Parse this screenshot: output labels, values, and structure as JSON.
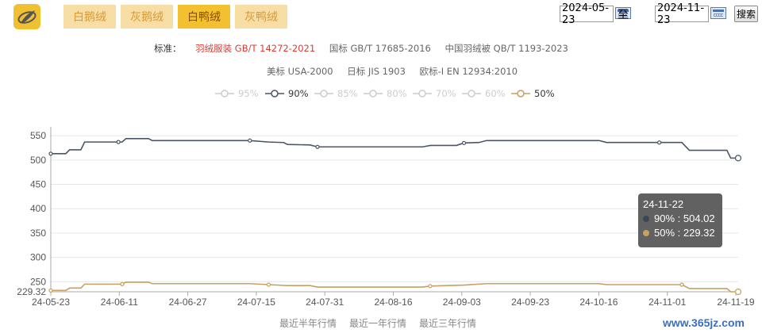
{
  "logo": {
    "icon": "feather-icon",
    "color": "#f0c030"
  },
  "tabs": [
    {
      "label": "白鹅绒",
      "active": false
    },
    {
      "label": "灰鹅绒",
      "active": false
    },
    {
      "label": "白鸭绒",
      "active": true
    },
    {
      "label": "灰鸭绒",
      "active": false
    }
  ],
  "date_range": {
    "start": "2024-05-23",
    "separator": "至",
    "end": "2024-11-23",
    "search_label": "搜索"
  },
  "standards": {
    "label": "标准：",
    "row1": [
      "羽绒服装 GB/T 14272-2021",
      "国标 GB/T 17685-2016",
      "中国羽绒被 QB/T 1193-2023"
    ],
    "row2": [
      "美标 USA-2000",
      "日标 JIS 1903",
      "欧标-I EN 12934:2010"
    ]
  },
  "chart_data": {
    "type": "line",
    "legend": [
      {
        "name": "95%",
        "active": false
      },
      {
        "name": "90%",
        "active": true,
        "color": "#4a5568"
      },
      {
        "name": "85%",
        "active": false
      },
      {
        "name": "80%",
        "active": false
      },
      {
        "name": "70%",
        "active": false
      },
      {
        "name": "60%",
        "active": false
      },
      {
        "name": "50%",
        "active": true,
        "color": "#c8a060"
      }
    ],
    "x_tick_labels": [
      "24-05-23",
      "24-06-11",
      "24-06-27",
      "24-07-15",
      "24-07-31",
      "24-08-16",
      "24-09-03",
      "24-09-23",
      "24-10-16",
      "24-11-01",
      "24-11-19"
    ],
    "y_ticks": [
      250,
      300,
      350,
      400,
      450,
      500,
      550
    ],
    "y_min_label": "229.32",
    "ylim": [
      229.32,
      560
    ],
    "grid": true,
    "series": [
      {
        "name": "90%",
        "color": "#4a5568",
        "points": [
          [
            "2024-05-23",
            513
          ],
          [
            "2024-05-27",
            513
          ],
          [
            "2024-05-28",
            521
          ],
          [
            "2024-05-31",
            521
          ],
          [
            "2024-06-01",
            537
          ],
          [
            "2024-06-10",
            537
          ],
          [
            "2024-06-11",
            537
          ],
          [
            "2024-06-12",
            544
          ],
          [
            "2024-06-18",
            544
          ],
          [
            "2024-06-19",
            540
          ],
          [
            "2024-07-15",
            540
          ],
          [
            "2024-07-20",
            537
          ],
          [
            "2024-07-24",
            536
          ],
          [
            "2024-07-25",
            532
          ],
          [
            "2024-07-31",
            531
          ],
          [
            "2024-08-02",
            527
          ],
          [
            "2024-08-16",
            527
          ],
          [
            "2024-08-30",
            527
          ],
          [
            "2024-09-01",
            530
          ],
          [
            "2024-09-08",
            530
          ],
          [
            "2024-09-10",
            535
          ],
          [
            "2024-09-14",
            536
          ],
          [
            "2024-09-16",
            540
          ],
          [
            "2024-10-16",
            540
          ],
          [
            "2024-10-18",
            536
          ],
          [
            "2024-11-01",
            536
          ],
          [
            "2024-11-07",
            536
          ],
          [
            "2024-11-09",
            520
          ],
          [
            "2024-11-19",
            520
          ],
          [
            "2024-11-20",
            504.02
          ],
          [
            "2024-11-22",
            504.02
          ]
        ]
      },
      {
        "name": "50%",
        "color": "#c8a060",
        "points": [
          [
            "2024-05-23",
            232
          ],
          [
            "2024-05-27",
            232
          ],
          [
            "2024-05-28",
            237
          ],
          [
            "2024-05-31",
            237
          ],
          [
            "2024-06-01",
            245
          ],
          [
            "2024-06-11",
            245
          ],
          [
            "2024-06-12",
            249
          ],
          [
            "2024-06-18",
            249
          ],
          [
            "2024-06-19",
            246
          ],
          [
            "2024-07-15",
            246
          ],
          [
            "2024-07-20",
            244
          ],
          [
            "2024-07-25",
            242
          ],
          [
            "2024-07-31",
            242
          ],
          [
            "2024-08-02",
            239
          ],
          [
            "2024-08-30",
            239
          ],
          [
            "2024-09-01",
            241
          ],
          [
            "2024-09-10",
            243
          ],
          [
            "2024-09-16",
            246
          ],
          [
            "2024-10-16",
            246
          ],
          [
            "2024-10-18",
            244
          ],
          [
            "2024-11-07",
            244
          ],
          [
            "2024-11-09",
            236
          ],
          [
            "2024-11-19",
            236
          ],
          [
            "2024-11-20",
            229.32
          ],
          [
            "2024-11-22",
            229.32
          ]
        ]
      }
    ],
    "tooltip": {
      "date": "24-11-22",
      "rows": [
        {
          "name": "90%",
          "value": "504.02",
          "color": "#3d4557"
        },
        {
          "name": "50%",
          "value": "229.32",
          "color": "#c8a060"
        }
      ]
    }
  },
  "bottom_links": [
    "最近半年行情",
    "最近一年行情",
    "最近三年行情"
  ],
  "watermark": "www.365jz.com"
}
